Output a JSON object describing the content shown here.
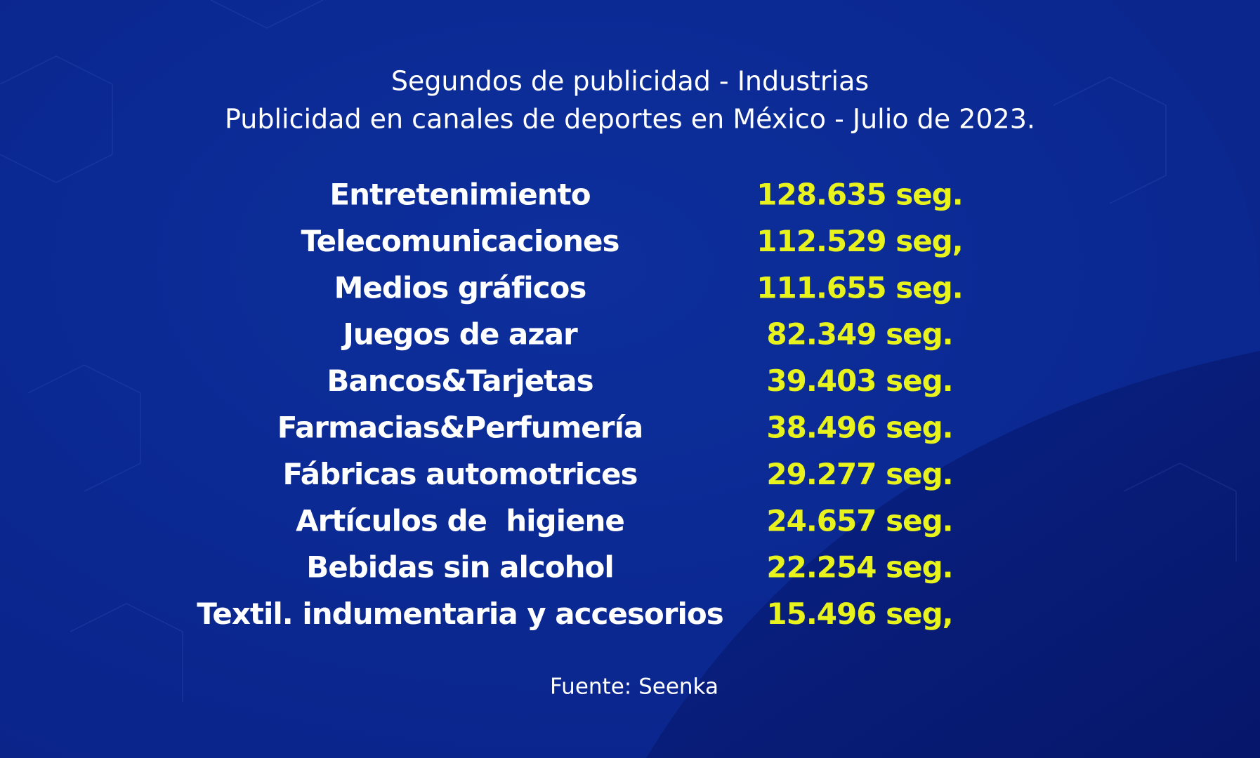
{
  "header": {
    "title": "Segundos de publicidad - Industrias",
    "subtitle": "Publicidad en canales de deportes en México - Julio de 2023."
  },
  "table": {
    "rows": [
      [
        "Entretenimiento",
        "128.635 seg."
      ],
      [
        "Telecomunicaciones",
        "112.529 seg,"
      ],
      [
        "Medios gráficos",
        "111.655 seg."
      ],
      [
        "Juegos de azar",
        "82.349 seg."
      ],
      [
        "Bancos&Tarjetas",
        "39.403 seg."
      ],
      [
        "Farmacias&Perfumería",
        "38.496 seg."
      ],
      [
        "Fábricas automotrices",
        "29.277 seg."
      ],
      [
        "Artículos de  higiene",
        "24.657 seg."
      ],
      [
        "Bebidas sin alcohol",
        "22.254 seg."
      ],
      [
        "Textil. indumentaria y accesorios",
        "15.496 seg,"
      ]
    ]
  },
  "footer": {
    "source": "Fuente: Seenka"
  }
}
